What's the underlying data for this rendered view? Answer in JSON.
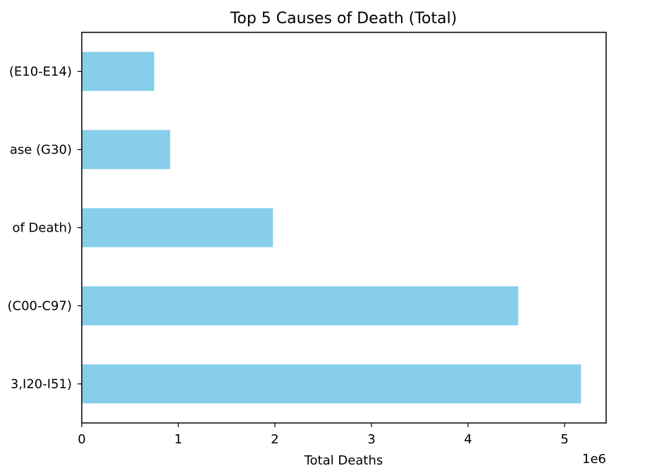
{
  "chart_data": {
    "type": "bar",
    "orientation": "horizontal",
    "title": "Top 5 Causes of Death (Total)",
    "xlabel": "Total Deaths",
    "ylabel": "",
    "x_offset_label": "1e6",
    "xlim": [
      0,
      5.43
    ],
    "xticks": [
      0,
      1,
      2,
      3,
      4,
      5
    ],
    "x_tick_labels": [
      "0",
      "1",
      "2",
      "3",
      "4",
      "5"
    ],
    "value_scale": 1000000,
    "categories": [
      "(E10-E14)",
      "ase (G30)",
      "of Death)",
      "(C00-C97)",
      "3,I20-I51)"
    ],
    "values": [
      750000,
      915000,
      1980000,
      4520000,
      5170000
    ],
    "bar_color": "#87ceeb",
    "grid": false
  }
}
